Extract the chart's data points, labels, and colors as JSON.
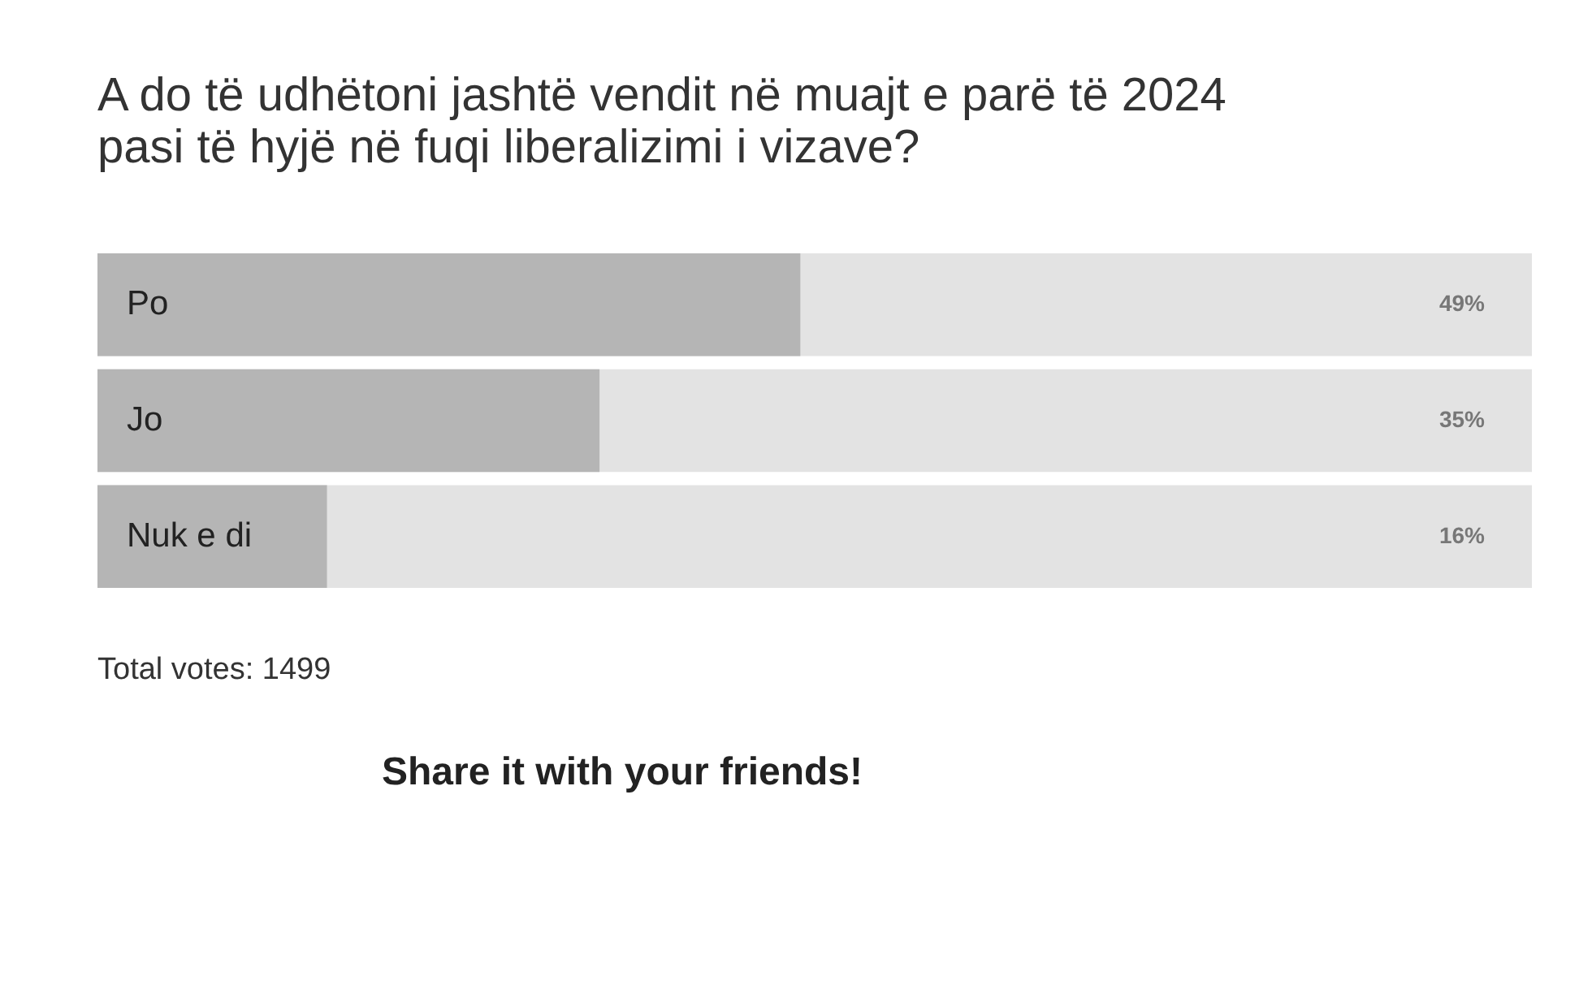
{
  "chart_data": {
    "type": "bar",
    "orientation": "horizontal",
    "title": "A do të udhëtoni jashtë vendit në muajt e parë të 2024 pasi të hyjë në fuqi liberalizimi i vizave?",
    "categories": [
      "Po",
      "Jo",
      "Nuk e di"
    ],
    "values": [
      49,
      35,
      16
    ],
    "value_labels": [
      "49%",
      "35%",
      "16%"
    ],
    "color": "#b5b5b5",
    "xlim": [
      0,
      100
    ],
    "bands": [
      {
        "axis": "x",
        "from": 0,
        "to": 100,
        "color": "#e3e3e3"
      }
    ],
    "annotations": [
      "Total votes: 1499",
      "Share it with your friends!"
    ]
  }
}
